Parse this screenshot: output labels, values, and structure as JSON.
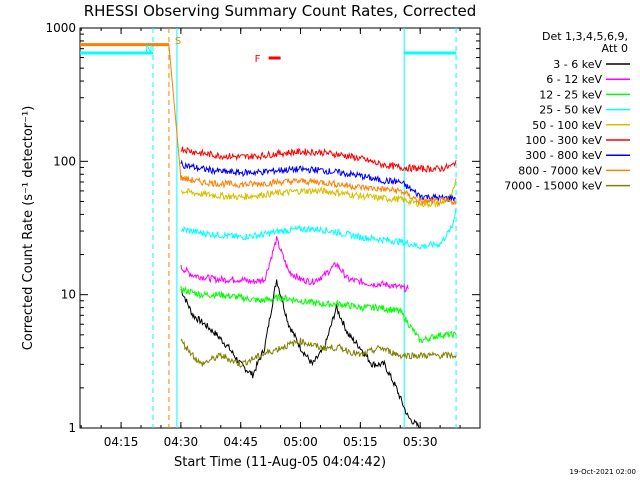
{
  "chart_data": {
    "type": "line",
    "title": "RHESSI Observing Summary Count Rates, Corrected",
    "xlabel": "Start Time (11-Aug-05 04:04:42)",
    "ylabel": "Corrected Count Rate (s⁻¹ detector⁻¹)",
    "yscale": "log",
    "ylim": [
      1,
      1000
    ],
    "xlim": [
      "04:04:42",
      "05:45:00"
    ],
    "x_ticks": [
      "04:15",
      "04:30",
      "04:45",
      "05:00",
      "05:15",
      "05:30"
    ],
    "y_ticks": [
      "1",
      "10",
      "100",
      "1000"
    ],
    "legend_header": [
      "Det 1,3,4,5,6,9,",
      "Att 0"
    ],
    "legend_position": "right",
    "timestamp": "19-Oct-2021 02:00",
    "series": [
      {
        "name": "3 - 6 keV",
        "color": "#000000",
        "x": [
          "04:30",
          "04:33",
          "04:36",
          "04:39",
          "04:42",
          "04:45",
          "04:48",
          "04:51",
          "04:54",
          "04:57",
          "05:00",
          "05:03",
          "05:06",
          "05:09",
          "05:12",
          "05:15",
          "05:18",
          "05:21",
          "05:24",
          "05:27",
          "05:30"
        ],
        "values": [
          11,
          7,
          6,
          5,
          4,
          3,
          2.5,
          4,
          13,
          6,
          4,
          3,
          4,
          8,
          5,
          4,
          3,
          3,
          2,
          1.2,
          1
        ]
      },
      {
        "name": "6 - 12 keV",
        "color": "#ff00ff",
        "x": [
          "04:30",
          "04:33",
          "04:36",
          "04:39",
          "04:42",
          "04:45",
          "04:48",
          "04:51",
          "04:54",
          "04:57",
          "05:00",
          "05:03",
          "05:06",
          "05:09",
          "05:12",
          "05:15",
          "05:18",
          "05:21",
          "05:24",
          "05:27"
        ],
        "values": [
          16,
          14,
          13.5,
          13,
          13,
          13,
          12.5,
          13,
          26,
          15,
          13,
          12.5,
          14,
          17,
          13,
          12.5,
          12,
          12,
          11.5,
          11
        ]
      },
      {
        "name": "12 - 25 keV",
        "color": "#00ff00",
        "x": [
          "04:30",
          "04:35",
          "04:40",
          "04:45",
          "04:50",
          "04:55",
          "05:00",
          "05:05",
          "05:10",
          "05:15",
          "05:20",
          "05:25",
          "05:30",
          "05:35",
          "05:39"
        ],
        "values": [
          11,
          10,
          10,
          9.5,
          9,
          9.5,
          9,
          8.5,
          8.5,
          8,
          8,
          7.5,
          4.5,
          5,
          5
        ]
      },
      {
        "name": "25 - 50 keV",
        "color": "#00ffff",
        "x": [
          "04:30",
          "04:35",
          "04:40",
          "04:45",
          "04:50",
          "04:55",
          "05:00",
          "05:05",
          "05:10",
          "05:15",
          "05:20",
          "05:25",
          "05:30",
          "05:35",
          "05:38",
          "05:39"
        ],
        "values": [
          31,
          29,
          28,
          27,
          28,
          30,
          31,
          31,
          29,
          27,
          26,
          25,
          23,
          24,
          32,
          45
        ]
      },
      {
        "name": "50 - 100 keV",
        "color": "#d4c000",
        "x": [
          "04:30",
          "04:35",
          "04:40",
          "04:45",
          "04:50",
          "04:55",
          "05:00",
          "05:05",
          "05:10",
          "05:15",
          "05:20",
          "05:25",
          "05:30",
          "05:35",
          "05:38",
          "05:39"
        ],
        "values": [
          60,
          57,
          55,
          54,
          56,
          58,
          60,
          60,
          58,
          55,
          53,
          52,
          48,
          48,
          55,
          75
        ]
      },
      {
        "name": "100 - 300 keV",
        "color": "#ff0000",
        "x": [
          "04:30",
          "04:35",
          "04:40",
          "04:45",
          "04:50",
          "04:55",
          "05:00",
          "05:05",
          "05:10",
          "05:15",
          "05:20",
          "05:25",
          "05:30",
          "05:35",
          "05:38",
          "05:39"
        ],
        "values": [
          125,
          115,
          110,
          108,
          110,
          115,
          118,
          117,
          112,
          105,
          95,
          90,
          88,
          88,
          92,
          102
        ]
      },
      {
        "name": "300 - 800 keV",
        "color": "#0000ff",
        "x": [
          "04:30",
          "04:35",
          "04:40",
          "04:45",
          "04:50",
          "04:55",
          "05:00",
          "05:05",
          "05:10",
          "05:15",
          "05:20",
          "05:25",
          "05:30",
          "05:35",
          "05:39"
        ],
        "values": [
          95,
          88,
          84,
          82,
          83,
          86,
          87,
          86,
          82,
          78,
          72,
          70,
          55,
          53,
          53
        ]
      },
      {
        "name": "800 - 7000 keV",
        "color": "#ff8000",
        "x": [
          "04:04:42",
          "04:27",
          "04:30",
          "04:35",
          "04:40",
          "04:45",
          "04:50",
          "04:55",
          "05:00",
          "05:05",
          "05:10",
          "05:15",
          "05:20",
          "05:25",
          "05:30",
          "05:35",
          "05:39"
        ],
        "values": [
          750,
          750,
          75,
          70,
          68,
          67,
          68,
          70,
          71,
          70,
          67,
          64,
          62,
          60,
          50,
          50,
          50
        ]
      },
      {
        "name": "7000 - 15000 keV",
        "color": "#808000",
        "x": [
          "04:30",
          "04:35",
          "04:40",
          "04:45",
          "04:50",
          "04:55",
          "05:00",
          "05:05",
          "05:10",
          "05:15",
          "05:20",
          "05:25",
          "05:30",
          "05:35",
          "05:39"
        ],
        "values": [
          4.5,
          3,
          3.5,
          3,
          3.5,
          4,
          4.5,
          4,
          4,
          3.5,
          4,
          3.5,
          3.5,
          3.5,
          3.5
        ]
      }
    ],
    "annotations": [
      {
        "label": "S",
        "color": "#ff8000",
        "time": "04:27"
      },
      {
        "label": "N",
        "color": "#00ffff",
        "time": "04:23"
      },
      {
        "label": "F",
        "color": "#ff0000",
        "time_start": "04:52",
        "time_end": "04:55"
      }
    ],
    "night_bars": [
      {
        "color": "#00ffff",
        "start": "04:04:42",
        "end": "04:23",
        "level": 650
      },
      {
        "color": "#00ffff",
        "start": "05:26",
        "end": "05:39",
        "level": 650
      }
    ],
    "vertical_markers": [
      {
        "time": "04:23",
        "color": "#00ffff",
        "style": "dashed"
      },
      {
        "time": "04:27",
        "color": "#ff8000",
        "style": "dashed"
      },
      {
        "time": "04:29",
        "color": "#00ffff",
        "style": "solid"
      },
      {
        "time": "05:26",
        "color": "#00ffff",
        "style": "solid"
      },
      {
        "time": "05:39",
        "color": "#00ffff",
        "style": "dashed"
      }
    ]
  }
}
